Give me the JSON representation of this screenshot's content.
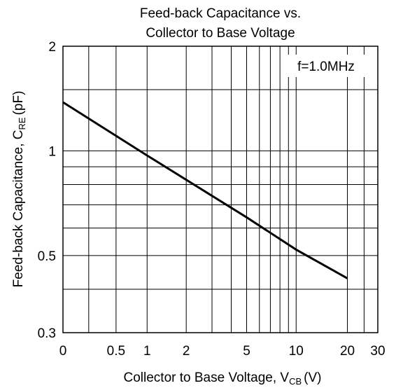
{
  "chart_data": {
    "type": "line",
    "title": [
      "Feed-back Capacitance vs.",
      "Collector to Base Voltage"
    ],
    "xlabel": {
      "text": "Collector to Base Voltage, V",
      "sub": "CB",
      "unit": "(V)"
    },
    "ylabel": {
      "text": "Feed-back Capacitance, C",
      "sub": "RE",
      "unit": "(pF)"
    },
    "annotation": "f=1.0MHz",
    "x": [
      0,
      1,
      5,
      10,
      20
    ],
    "series": [
      {
        "name": "CRE",
        "color": "#000000",
        "values": [
          1.38,
          0.97,
          0.644,
          0.52,
          0.43
        ]
      }
    ],
    "xlim": [
      0,
      30
    ],
    "xticks": [
      0,
      0.5,
      1,
      2,
      5,
      10,
      20,
      30
    ],
    "xminor": [
      0.2,
      3,
      4,
      6,
      7,
      8,
      9,
      25
    ],
    "ylim": [
      0.3,
      2
    ],
    "yticks": [
      0.3,
      0.5,
      1,
      2
    ],
    "yminor": [
      0.4,
      0.6,
      0.7,
      0.8,
      0.9,
      1.5
    ],
    "yscale": "log",
    "grid": true
  }
}
